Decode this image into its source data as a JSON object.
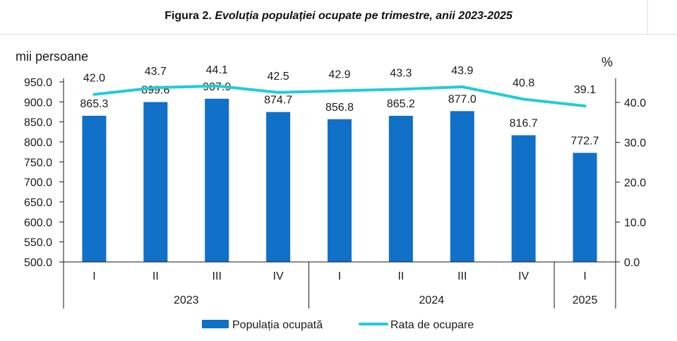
{
  "figure": {
    "title_prefix": "Figura 2.",
    "title_rest": "Evoluția populației ocupate pe trimestre, anii 2023-2025"
  },
  "chart_data": {
    "type": "bar",
    "title": "Figura 2. Evoluția populației ocupate pe trimestre, anii 2023-2025",
    "categories": [
      "I",
      "II",
      "III",
      "IV",
      "I",
      "II",
      "III",
      "IV",
      "I"
    ],
    "year_groups": [
      {
        "label": "2023",
        "count": 4
      },
      {
        "label": "2024",
        "count": 4
      },
      {
        "label": "2025",
        "count": 1
      }
    ],
    "ylabel_left": "mii persoane",
    "ylabel_right": "%",
    "y_left": {
      "min": 500,
      "max": 950,
      "step": 50
    },
    "y_right": {
      "min": 0,
      "max": 40,
      "step": 10
    },
    "y_left_ticks": [
      "500.0",
      "550.0",
      "600.0",
      "650.0",
      "700.0",
      "750.0",
      "800.0",
      "850.0",
      "900.0",
      "950.0"
    ],
    "y_right_ticks": [
      "0.0",
      "10.0",
      "20.0",
      "30.0",
      "40.0"
    ],
    "series": [
      {
        "name": "Populația ocupată",
        "type": "bar",
        "axis": "left",
        "color": "#1170c8",
        "values": [
          865.3,
          899.6,
          907.9,
          874.7,
          856.8,
          865.2,
          877.0,
          816.7,
          772.7
        ],
        "labels": [
          "865.3",
          "899.6",
          "907.9",
          "874.7",
          "856.8",
          "865.2",
          "877.0",
          "816.7",
          "772.7"
        ]
      },
      {
        "name": "Rata de ocupare",
        "type": "line",
        "axis": "right",
        "color": "#22ccd6",
        "values": [
          42.0,
          43.7,
          44.1,
          42.5,
          42.9,
          43.3,
          43.9,
          40.8,
          39.1
        ],
        "labels": [
          "42.0",
          "43.7",
          "44.1",
          "42.5",
          "42.9",
          "43.3",
          "43.9",
          "40.8",
          "39.1"
        ]
      }
    ],
    "legend_position": "bottom",
    "grid": false
  }
}
